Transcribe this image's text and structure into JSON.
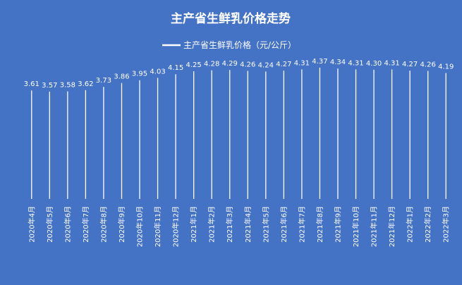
{
  "chart_data": {
    "type": "bar",
    "title": "主产省生鲜乳价格走势",
    "legend": {
      "position": "top",
      "label": "主产省生鲜乳价格（元/公斤）"
    },
    "categories": [
      "2020年4月",
      "2020年5月",
      "2020年6月",
      "2020年7月",
      "2020年8月",
      "2020年9月",
      "2020年10月",
      "2020年11月",
      "2020年12月",
      "2021年1月",
      "2021年2月",
      "2021年3月",
      "2021年4月",
      "2021年5月",
      "2021年6月",
      "2021年7月",
      "2021年8月",
      "2021年9月",
      "2021年10月",
      "2021年11月",
      "2021年12月",
      "2022年1月",
      "2022年2月",
      "2022年3月"
    ],
    "series": [
      {
        "name": "主产省生鲜乳价格（元/公斤）",
        "values": [
          3.61,
          3.57,
          3.58,
          3.62,
          3.73,
          3.86,
          3.95,
          4.03,
          4.15,
          4.25,
          4.28,
          4.29,
          4.26,
          4.24,
          4.27,
          4.31,
          4.37,
          4.34,
          4.31,
          4.3,
          4.31,
          4.27,
          4.26,
          4.19
        ]
      }
    ],
    "ylim": [
      0,
      4.7
    ],
    "grid": false,
    "colors": {
      "background": "#4472C4",
      "bar": "#FFFFFF",
      "text": "#FFFFFF"
    }
  }
}
